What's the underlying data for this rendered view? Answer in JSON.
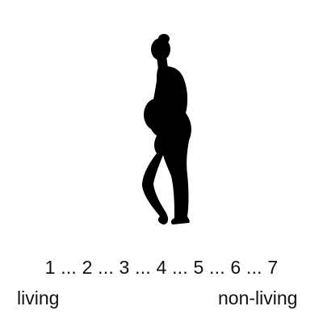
{
  "figure": {
    "icon": "pregnant-woman-silhouette",
    "color": "#000000"
  },
  "scale": {
    "points": [
      "1",
      "2",
      "3",
      "4",
      "5",
      "6",
      "7"
    ],
    "separator": " ... "
  },
  "anchors": {
    "left": "living",
    "right": "non-living"
  }
}
